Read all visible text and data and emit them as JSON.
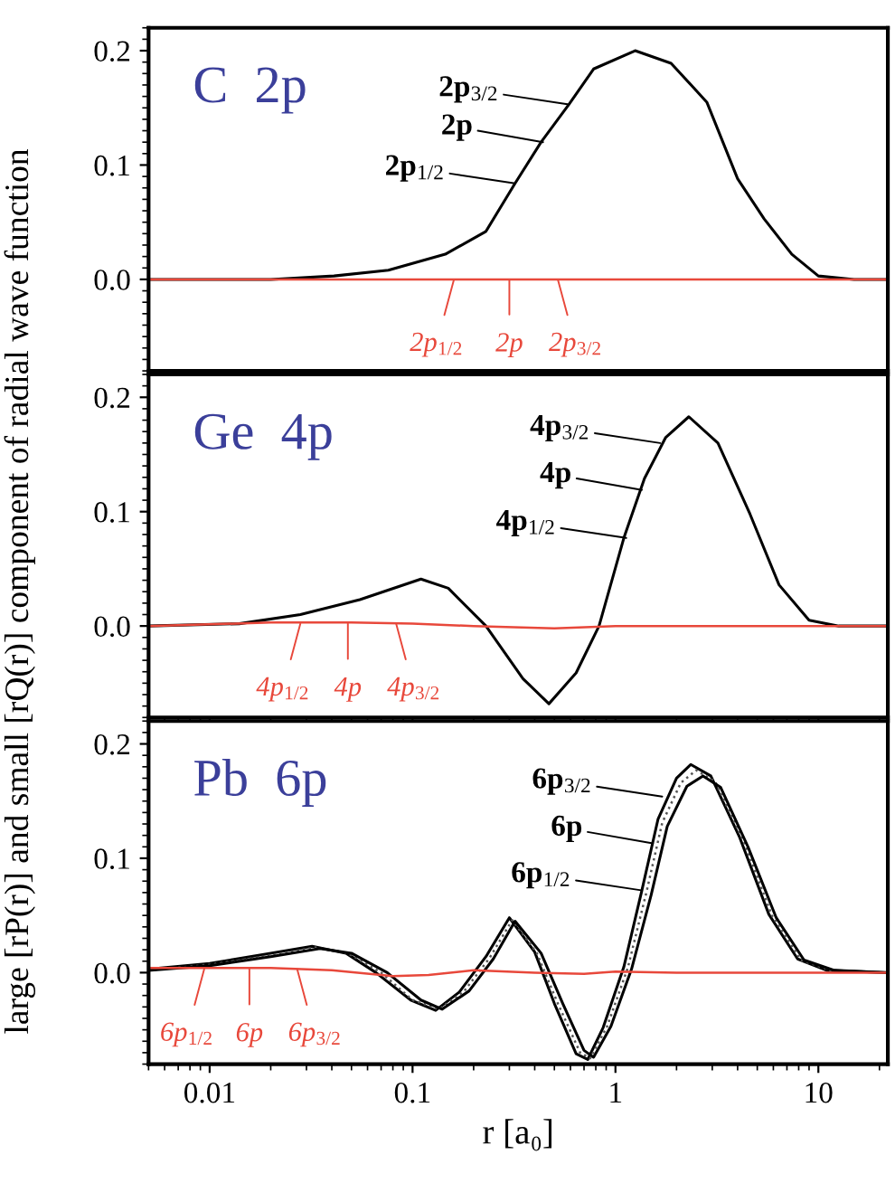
{
  "chart_data": [
    {
      "type": "line",
      "title": "C  2p",
      "log": "x",
      "xlim": [
        0.005,
        22
      ],
      "xticks": [
        {
          "value": 0.01,
          "label": null
        },
        {
          "value": 0.1,
          "label": null
        },
        {
          "value": 1,
          "label": null
        },
        {
          "value": 10,
          "label": null
        }
      ],
      "ylim": [
        -0.08,
        0.22
      ],
      "yticks": [
        {
          "value": 0,
          "label": "0.0"
        },
        {
          "value": 0.1,
          "label": "0.1"
        },
        {
          "value": 0.2,
          "label": "0.2"
        }
      ],
      "tick_labels": "y",
      "series": [
        {
          "color": "#000000",
          "x": [
            0.005,
            0.02,
            0.041,
            0.076,
            0.145,
            0.23,
            0.32,
            0.43,
            0.59,
            0.78,
            1.25,
            1.88,
            2.82,
            4.0,
            5.4,
            7.4,
            10,
            15,
            22
          ],
          "values": [
            0,
            0,
            0.003,
            0.008,
            0.022,
            0.042,
            0.084,
            0.12,
            0.153,
            0.184,
            0.2,
            0.189,
            0.155,
            0.088,
            0.053,
            0.022,
            0.003,
            0,
            0
          ]
        },
        {
          "color": "#e8483b",
          "x": [
            0.005,
            0.1,
            1,
            22
          ],
          "values": [
            0,
            0,
            0,
            0
          ]
        }
      ],
      "annotations": [
        {
          "text": "2p$_{3/2}$",
          "x": 0.59,
          "y": 0.153
        },
        {
          "text": "2p",
          "x": 0.44,
          "y": 0.12
        },
        {
          "text": "2p$_{1/2}$",
          "x": 0.32,
          "y": 0.084
        },
        {
          "text": "2p$_{1/2}$",
          "x": 0.16,
          "y": 0
        },
        {
          "text": "2p",
          "x": 0.3,
          "y": 0
        },
        {
          "text": "2p$_{3/2}$",
          "x": 0.52,
          "y": 0
        }
      ]
    },
    {
      "type": "line",
      "title": "Ge  4p",
      "ylabel": "large [rP(r)] and small [rQ(r)] component of radial wave function",
      "log": "x",
      "xlim": [
        0.005,
        22
      ],
      "xticks": [
        {
          "value": 0.01,
          "label": null
        },
        {
          "value": 0.1,
          "label": null
        },
        {
          "value": 1,
          "label": null
        },
        {
          "value": 10,
          "label": null
        }
      ],
      "ylim": [
        -0.08,
        0.22
      ],
      "yticks": [
        {
          "value": 0,
          "label": "0.0"
        },
        {
          "value": 0.1,
          "label": "0.1"
        },
        {
          "value": 0.2,
          "label": "0.2"
        }
      ],
      "tick_labels": "y",
      "series": [
        {
          "color": "#000000",
          "x": [
            0.005,
            0.014,
            0.028,
            0.055,
            0.11,
            0.15,
            0.23,
            0.35,
            0.47,
            0.64,
            0.83,
            1.1,
            1.39,
            1.77,
            2.3,
            3.2,
            4.6,
            6.4,
            9.0,
            12.6,
            22
          ],
          "values": [
            0,
            0.002,
            0.01,
            0.023,
            0.041,
            0.033,
            0,
            -0.046,
            -0.068,
            -0.041,
            0,
            0.077,
            0.129,
            0.165,
            0.183,
            0.16,
            0.098,
            0.036,
            0.005,
            0,
            0
          ]
        },
        {
          "color": "#e8483b",
          "x": [
            0.005,
            0.02,
            0.05,
            0.1,
            0.2,
            0.5,
            1,
            2,
            22
          ],
          "values": [
            0,
            0.003,
            0.003,
            0.002,
            0,
            -0.002,
            0,
            0,
            0
          ]
        }
      ],
      "annotations": [
        {
          "text": "4p$_{3/2}$",
          "x": 1.66,
          "y": 0.16
        },
        {
          "text": "4p",
          "x": 1.35,
          "y": 0.119
        },
        {
          "text": "4p$_{1/2}$",
          "x": 1.13,
          "y": 0.077
        },
        {
          "text": "4p$_{1/2}$",
          "x": 0.028,
          "y": 0.002
        },
        {
          "text": "4p",
          "x": 0.048,
          "y": 0.002
        },
        {
          "text": "4p$_{3/2}$",
          "x": 0.083,
          "y": 0.002
        }
      ]
    },
    {
      "type": "line",
      "title": "Pb  6p",
      "xlabel": "r [a₀]",
      "log": "x",
      "xlim": [
        0.005,
        22
      ],
      "xticks": [
        {
          "value": 0.01,
          "label": "0.01"
        },
        {
          "value": 0.1,
          "label": "0.1"
        },
        {
          "value": 1,
          "label": "1"
        },
        {
          "value": 10,
          "label": "10"
        }
      ],
      "ylim": [
        -0.08,
        0.22
      ],
      "yticks": [
        {
          "value": 0,
          "label": "0.0"
        },
        {
          "value": 0.1,
          "label": "0.1"
        },
        {
          "value": 0.2,
          "label": "0.2"
        }
      ],
      "series": [
        {
          "color": "#000000",
          "x": [
            0.005,
            0.01,
            0.02,
            0.032,
            0.047,
            0.066,
            0.098,
            0.13,
            0.17,
            0.23,
            0.3,
            0.4,
            0.5,
            0.64,
            0.73,
            0.87,
            1.1,
            1.35,
            1.62,
            2.0,
            2.35,
            2.95,
            4.1,
            5.7,
            7.9,
            11,
            22
          ],
          "values": [
            0.003,
            0.008,
            0.017,
            0.023,
            0.017,
            0,
            -0.024,
            -0.033,
            -0.017,
            0.014,
            0.048,
            0.018,
            -0.027,
            -0.071,
            -0.076,
            -0.048,
            0.005,
            0.072,
            0.134,
            0.17,
            0.182,
            0.172,
            0.118,
            0.051,
            0.012,
            0.002,
            0
          ]
        },
        {
          "color": "#555555",
          "line_style": "dotted",
          "x": [
            0.005,
            0.01,
            0.02,
            0.033,
            0.048,
            0.07,
            0.1,
            0.135,
            0.18,
            0.24,
            0.31,
            0.41,
            0.52,
            0.67,
            0.75,
            0.91,
            1.15,
            1.42,
            1.7,
            2.1,
            2.5,
            3.1,
            4.3,
            5.9,
            8.2,
            11.5,
            22
          ],
          "values": [
            0.002,
            0.007,
            0.015,
            0.022,
            0.017,
            0,
            -0.024,
            -0.032,
            -0.016,
            0.013,
            0.046,
            0.017,
            -0.027,
            -0.07,
            -0.075,
            -0.047,
            0.004,
            0.07,
            0.131,
            0.166,
            0.177,
            0.167,
            0.114,
            0.05,
            0.011,
            0.002,
            0
          ]
        },
        {
          "color": "#000000",
          "x": [
            0.005,
            0.01,
            0.02,
            0.035,
            0.05,
            0.075,
            0.11,
            0.14,
            0.19,
            0.25,
            0.32,
            0.43,
            0.55,
            0.7,
            0.78,
            0.95,
            1.2,
            1.5,
            1.8,
            2.25,
            2.7,
            3.3,
            4.5,
            6.2,
            8.5,
            12,
            22
          ],
          "values": [
            0.002,
            0.006,
            0.014,
            0.021,
            0.017,
            0,
            -0.024,
            -0.032,
            -0.016,
            0.012,
            0.045,
            0.017,
            -0.027,
            -0.068,
            -0.074,
            -0.047,
            0.003,
            0.068,
            0.128,
            0.163,
            0.172,
            0.162,
            0.11,
            0.048,
            0.011,
            0.002,
            0
          ]
        },
        {
          "color": "#e8483b",
          "x": [
            0.005,
            0.01,
            0.02,
            0.04,
            0.08,
            0.12,
            0.2,
            0.4,
            0.7,
            1,
            2,
            22
          ],
          "values": [
            0.004,
            0.004,
            0.004,
            0.002,
            -0.003,
            -0.002,
            0.002,
            0,
            -0.001,
            0.001,
            0,
            0
          ]
        }
      ],
      "annotations": [
        {
          "text": "6p$_{3/2}$",
          "x": 1.7,
          "y": 0.154
        },
        {
          "text": "6p",
          "x": 1.53,
          "y": 0.113
        },
        {
          "text": "6p$_{1/2}$",
          "x": 1.34,
          "y": 0.072
        },
        {
          "text": "6p$_{1/2}$",
          "x": 0.0094,
          "y": 0.003
        },
        {
          "text": "6p",
          "x": 0.0157,
          "y": 0.003
        },
        {
          "text": "6p$_{3/2}$",
          "x": 0.027,
          "y": 0.003
        }
      ]
    }
  ]
}
